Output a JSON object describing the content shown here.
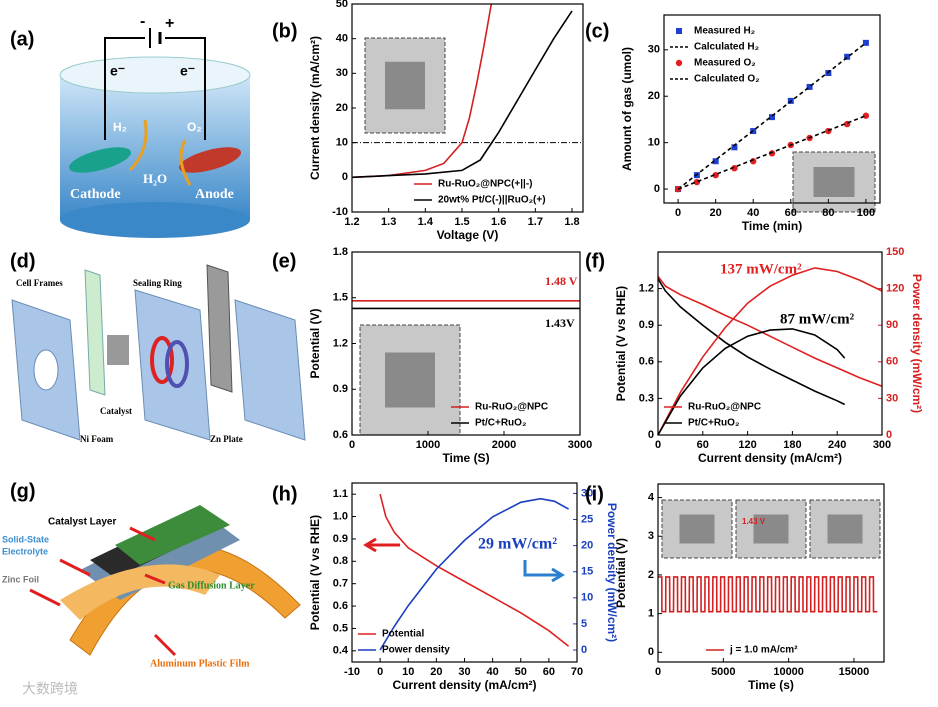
{
  "watermark": "大数跨境",
  "diagrams": [
    {
      "panel": "(a)",
      "labels": [
        "-",
        "+",
        "e⁻",
        "e⁻",
        "H₂",
        "O₂",
        "H₂O",
        "Cathode",
        "Anode"
      ]
    },
    {
      "panel": "(d)",
      "labels": [
        "Cell Frames",
        "Sealing Ring",
        "Catalyst",
        "Ni Foam",
        "Zn Plate"
      ]
    },
    {
      "panel": "(g)",
      "labels": [
        "Catalyst Layer",
        "Solid-State",
        "Electrolyte",
        "Zinc Foil",
        "Gas Diffusion Layer",
        "Aluminum Plastic Film"
      ]
    }
  ],
  "chart_data": [
    {
      "panel": "(b)",
      "type": "line",
      "xlabel": "Voltage (V)",
      "ylabel": "Current density (mA/cm²)",
      "xlim": [
        1.2,
        1.83
      ],
      "xticks": [
        1.2,
        1.3,
        1.4,
        1.5,
        1.6,
        1.7,
        1.8
      ],
      "ylim": [
        -10,
        50
      ],
      "yticks": [
        -10,
        0,
        10,
        20,
        30,
        40,
        50
      ],
      "hlines": [
        10
      ],
      "legend": "lower right",
      "series": [
        {
          "name": "Ru-RuO₂@NPC(+||-)",
          "color": "#d42020",
          "x": [
            1.2,
            1.3,
            1.4,
            1.45,
            1.5,
            1.52,
            1.54,
            1.56,
            1.58
          ],
          "values": [
            0,
            0.5,
            2,
            4,
            10,
            17,
            27,
            38,
            50
          ]
        },
        {
          "name": "20wt% Pt/C(-)||RuO₂(+)",
          "color": "#000000",
          "x": [
            1.2,
            1.3,
            1.4,
            1.5,
            1.55,
            1.6,
            1.65,
            1.7,
            1.75,
            1.8
          ],
          "values": [
            0,
            0.5,
            1,
            2,
            5,
            13,
            22,
            31,
            40,
            48
          ]
        }
      ]
    },
    {
      "panel": "(c)",
      "type": "line",
      "xlabel": "Time (min)",
      "ylabel": "Amount of gas (umol)",
      "xlim": [
        -7.5,
        107.5
      ],
      "xticks": [
        0,
        20,
        40,
        60,
        80,
        100
      ],
      "ylim": [
        -3,
        37.5
      ],
      "yticks": [
        0,
        10,
        20,
        30
      ],
      "legend": "upper left",
      "series": [
        {
          "name": "Measured H₂",
          "color": "#1f3fd0",
          "marker": "square",
          "line": false,
          "x": [
            0,
            10,
            20,
            30,
            40,
            50,
            60,
            70,
            80,
            90,
            100
          ],
          "values": [
            0,
            3,
            6,
            9,
            12.5,
            15.5,
            19,
            22,
            25,
            28.5,
            31.5
          ]
        },
        {
          "name": "Calculated H₂",
          "color": "#000000",
          "dash": true,
          "x": [
            0,
            100
          ],
          "values": [
            0,
            31.5
          ]
        },
        {
          "name": "Measured O₂",
          "color": "#e02020",
          "marker": "circle",
          "line": false,
          "x": [
            0,
            10,
            20,
            30,
            40,
            50,
            60,
            70,
            80,
            90,
            100
          ],
          "values": [
            0,
            1.5,
            3,
            4.5,
            6,
            7.7,
            9.5,
            11,
            12.5,
            14,
            15.8
          ]
        },
        {
          "name": "Calculated O₂",
          "color": "#000000",
          "dash": true,
          "x": [
            0,
            100
          ],
          "values": [
            0,
            15.8
          ]
        }
      ]
    },
    {
      "panel": "(e)",
      "type": "line",
      "xlabel": "Time (S)",
      "ylabel": "Potential (V)",
      "xlim": [
        0,
        3000
      ],
      "xticks": [
        0,
        1000,
        2000,
        3000
      ],
      "ylim": [
        0.6,
        1.8
      ],
      "yticks": [
        0.6,
        0.9,
        1.2,
        1.5,
        1.8
      ],
      "legend": "lower right",
      "annotations": [
        "1.48 V",
        "1.43V"
      ],
      "series": [
        {
          "name": "Ru-RuO₂@NPC",
          "color": "#d42020",
          "x": [
            0,
            3000
          ],
          "values": [
            1.48,
            1.48
          ]
        },
        {
          "name": "Pt/C+RuO₂",
          "color": "#000000",
          "x": [
            0,
            3000
          ],
          "values": [
            1.43,
            1.43
          ]
        }
      ]
    },
    {
      "panel": "(f)",
      "type": "line",
      "xlabel": "Current density (mA/cm²)",
      "ylabel": "Potential (V vs RHE)",
      "y2label": "Power density (mW/cm²)",
      "xlim": [
        0,
        300
      ],
      "xticks": [
        0,
        60,
        120,
        180,
        240,
        300
      ],
      "ylim": [
        0,
        1.5
      ],
      "yticks": [
        0,
        0.3,
        0.6,
        0.9,
        1.2
      ],
      "y2lim": [
        0,
        150
      ],
      "y2ticks": [
        0,
        30,
        60,
        90,
        120,
        150
      ],
      "y2color": "#d42020",
      "legend": "lower left",
      "annotations": [
        "137 mW/cm²",
        "87 mW/cm²"
      ],
      "series": [
        {
          "name": "Ru-RuO₂@NPC",
          "color": "#e02020",
          "x": [
            0,
            10,
            30,
            60,
            90,
            120,
            150,
            180,
            210,
            240,
            270,
            300
          ],
          "values": [
            1.3,
            1.22,
            1.15,
            1.07,
            0.98,
            0.9,
            0.81,
            0.72,
            0.63,
            0.55,
            0.47,
            0.4
          ]
        },
        {
          "name": "Pt/C+RuO₂",
          "color": "#000000",
          "x": [
            0,
            10,
            30,
            60,
            90,
            120,
            150,
            180,
            210,
            240,
            250
          ],
          "values": [
            1.28,
            1.18,
            1.05,
            0.9,
            0.76,
            0.64,
            0.54,
            0.45,
            0.36,
            0.28,
            0.25
          ]
        },
        {
          "color": "#e02020",
          "axis": "y2",
          "x": [
            0,
            30,
            60,
            90,
            120,
            150,
            180,
            210,
            240,
            270,
            300
          ],
          "values": [
            0,
            35,
            64,
            88,
            108,
            122,
            131,
            137,
            134,
            127,
            118
          ]
        },
        {
          "color": "#000000",
          "axis": "y2",
          "x": [
            0,
            30,
            60,
            90,
            120,
            150,
            180,
            210,
            240,
            250
          ],
          "values": [
            0,
            32,
            55,
            71,
            81,
            86,
            87,
            82,
            70,
            63
          ]
        }
      ]
    },
    {
      "panel": "(h)",
      "type": "line",
      "xlabel": "Current density (mA/cm²)",
      "ylabel": "Potential (V vs RHE)",
      "y2label": "Power density (mW/cm²)",
      "xlim": [
        -10,
        70
      ],
      "xticks": [
        -10,
        0,
        10,
        20,
        30,
        40,
        50,
        60,
        70
      ],
      "ylim": [
        0.35,
        1.15
      ],
      "yticks": [
        0.4,
        0.5,
        0.6,
        0.7,
        0.8,
        0.9,
        {
          "value": 1,
          "label": "1.0"
        },
        1.1
      ],
      "y2lim": [
        -2.3,
        32
      ],
      "y2ticks": [
        0,
        5,
        10,
        15,
        20,
        25,
        30
      ],
      "y2color": "#1a3fbf",
      "legend": "lower left",
      "annotations": [
        "29 mW/cm²"
      ],
      "series": [
        {
          "name": "Potential",
          "color": "#e02020",
          "x": [
            0,
            2,
            5,
            10,
            20,
            30,
            40,
            50,
            60,
            67
          ],
          "values": [
            1.1,
            1.0,
            0.93,
            0.86,
            0.78,
            0.71,
            0.64,
            0.57,
            0.49,
            0.42
          ]
        },
        {
          "name": "Power density",
          "color": "#1a3fbf",
          "axis": "y2",
          "x": [
            0,
            5,
            10,
            20,
            30,
            40,
            50,
            57,
            62,
            67
          ],
          "values": [
            0,
            4.5,
            8.5,
            15.5,
            21,
            25.5,
            28.3,
            29,
            28.5,
            27
          ]
        }
      ]
    },
    {
      "panel": "(i)",
      "type": "line",
      "xlabel": "Time (s)",
      "ylabel": "Potential (V)",
      "xlim": [
        0,
        17300
      ],
      "xticks": [
        0,
        5000,
        10000,
        15000
      ],
      "ylim": [
        -0.25,
        4.35
      ],
      "yticks": [
        0,
        1,
        2,
        3,
        4
      ],
      "legend": "lower center",
      "annotations": [
        "1.43 V"
      ],
      "series": [
        {
          "name": "j = 1.0 mA/cm²",
          "color": "#d42020",
          "x": [
            0,
            290,
            300,
            590,
            600,
            890,
            900,
            1190,
            1200,
            1490,
            1500,
            1790,
            1800,
            2090,
            2100,
            2390,
            2400,
            2690,
            2700,
            2990,
            3000,
            3290,
            3300,
            3590,
            3600,
            3890,
            3900,
            4190,
            4200,
            4490,
            4500,
            4790,
            4800,
            5090,
            5100,
            5390,
            5400,
            5690,
            5700,
            5990,
            6000,
            6290,
            6300,
            6590,
            6600,
            6890,
            6900,
            7190,
            7200,
            7490,
            7500,
            7790,
            7800,
            8090,
            8100,
            8390,
            8400,
            8690,
            8700,
            8990,
            9000,
            9290,
            9300,
            9590,
            9600,
            9890,
            9900,
            10190,
            10200,
            10490,
            10500,
            10790,
            10800,
            11090,
            11100,
            11390,
            11400,
            11690,
            11700,
            11990,
            12000,
            12290,
            12300,
            12590,
            12600,
            12890,
            12900,
            13190,
            13200,
            13490,
            13500,
            13790,
            13800,
            14090,
            14100,
            14390,
            14400,
            14690,
            14700,
            14990,
            15000,
            15290,
            15300,
            15590,
            15600,
            15890,
            15900,
            16190,
            16200,
            16490,
            16500,
            16790
          ],
          "values": [
            1.95,
            1.95,
            1.05,
            1.05,
            1.95,
            1.95,
            1.05,
            1.05,
            1.95,
            1.95,
            1.05,
            1.05,
            1.95,
            1.95,
            1.05,
            1.05,
            1.95,
            1.95,
            1.05,
            1.05,
            1.95,
            1.95,
            1.05,
            1.05,
            1.95,
            1.95,
            1.05,
            1.05,
            1.95,
            1.95,
            1.05,
            1.05,
            1.95,
            1.95,
            1.05,
            1.05,
            1.95,
            1.95,
            1.05,
            1.05,
            1.95,
            1.95,
            1.05,
            1.05,
            1.95,
            1.95,
            1.05,
            1.05,
            1.95,
            1.95,
            1.05,
            1.05,
            1.95,
            1.95,
            1.05,
            1.05,
            1.95,
            1.95,
            1.05,
            1.05,
            1.95,
            1.95,
            1.05,
            1.05,
            1.95,
            1.95,
            1.05,
            1.05,
            1.95,
            1.95,
            1.05,
            1.05,
            1.95,
            1.95,
            1.05,
            1.05,
            1.95,
            1.95,
            1.05,
            1.05,
            1.95,
            1.95,
            1.05,
            1.05,
            1.95,
            1.95,
            1.05,
            1.05,
            1.95,
            1.95,
            1.05,
            1.05,
            1.95,
            1.95,
            1.05,
            1.05,
            1.95,
            1.95,
            1.05,
            1.05,
            1.95,
            1.95,
            1.05,
            1.05,
            1.95,
            1.95,
            1.05,
            1.05,
            1.95,
            1.95,
            1.05,
            1.05
          ]
        }
      ]
    }
  ]
}
